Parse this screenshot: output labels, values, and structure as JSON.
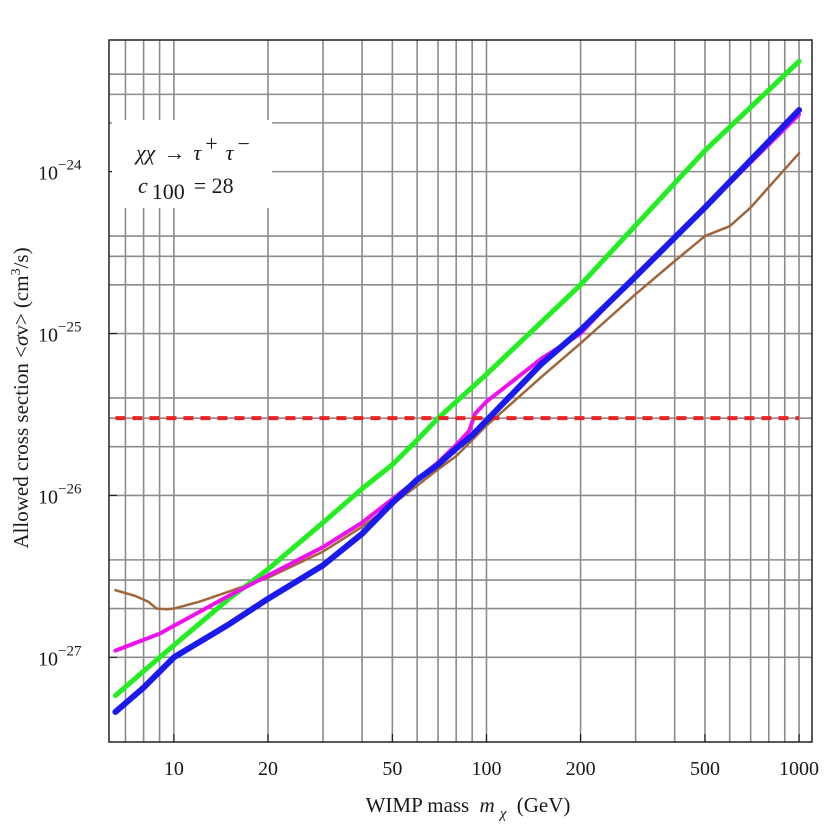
{
  "chart_data": {
    "type": "line",
    "title": "",
    "xlabel": {
      "prefix": "WIMP mass",
      "symbol": "m",
      "subscript": "χ",
      "suffix": "(GeV)"
    },
    "ylabel": {
      "prefix": "Allowed cross section <",
      "sigma": "σ",
      "v": "v",
      "suffix": "> (cm",
      "power": "3",
      "tail": "/s)"
    },
    "xscale": "log",
    "yscale": "log",
    "xlim": [
      6.2,
      1100
    ],
    "ylim": [
      3e-28,
      6.5e-24
    ],
    "x_ticks": [
      {
        "value": 10,
        "label": "10"
      },
      {
        "value": 20,
        "label": "20"
      },
      {
        "value": 50,
        "label": "50"
      },
      {
        "value": 100,
        "label": "100"
      },
      {
        "value": 200,
        "label": "200"
      },
      {
        "value": 500,
        "label": "500"
      },
      {
        "value": 1000,
        "label": "1000"
      }
    ],
    "y_ticks": [
      {
        "value": 1e-27,
        "base": "10",
        "exp": "−27"
      },
      {
        "value": 1e-26,
        "base": "10",
        "exp": "−26"
      },
      {
        "value": 1e-25,
        "base": "10",
        "exp": "−25"
      },
      {
        "value": 1e-24,
        "base": "10",
        "exp": "−24"
      }
    ],
    "grid": true,
    "x_grid": [
      7,
      8,
      9,
      10,
      20,
      30,
      40,
      50,
      60,
      70,
      80,
      90,
      100,
      200,
      300,
      400,
      500,
      600,
      700,
      800,
      900,
      1000
    ],
    "y_grid": [
      1e-27,
      2e-27,
      3e-27,
      4e-27,
      1e-26,
      2e-26,
      3e-26,
      4e-26,
      1e-25,
      2e-25,
      3e-25,
      4e-25,
      1e-24,
      2e-24,
      3e-24,
      4e-24
    ],
    "annotation": {
      "line1": {
        "a": "χχ",
        "arrow": "→",
        "b": "τ",
        "b_sup": "+",
        "c": "τ",
        "c_sup": "−"
      },
      "line2": {
        "c": "c",
        "sub": "100",
        "eq": "= 28"
      }
    },
    "series": [
      {
        "name": "green",
        "color": "#22ee22",
        "width": 5,
        "x": [
          6.5,
          9,
          15,
          20,
          30,
          40,
          50,
          60,
          70,
          100,
          200,
          500,
          1000
        ],
        "y": [
          5.8e-28,
          1e-27,
          2.3e-27,
          3.5e-27,
          6.8e-27,
          1.1e-26,
          1.55e-26,
          2.2e-26,
          3e-26,
          5.6e-26,
          2e-25,
          1.35e-24,
          4.8e-24
        ]
      },
      {
        "name": "blue",
        "color": "#1a1aee",
        "width": 6,
        "x": [
          6.5,
          8,
          10,
          15,
          20,
          30,
          40,
          50,
          60,
          70,
          80,
          90,
          100,
          150,
          200,
          300,
          500,
          1000
        ],
        "y": [
          4.6e-28,
          6.5e-28,
          1e-27,
          1.6e-27,
          2.3e-27,
          3.7e-27,
          5.8e-27,
          9e-27,
          1.25e-26,
          1.55e-26,
          1.95e-26,
          2.35e-26,
          2.9e-26,
          6.5e-26,
          1.05e-25,
          2.25e-25,
          6e-25,
          2.4e-24
        ]
      },
      {
        "name": "magenta",
        "color": "#ee11ee",
        "width": 4,
        "x": [
          6.5,
          9,
          15,
          20,
          30,
          40,
          50,
          60,
          70,
          80,
          88,
          92,
          100,
          150,
          200,
          300,
          500,
          1000
        ],
        "y": [
          1.1e-27,
          1.4e-27,
          2.4e-27,
          3.2e-27,
          4.8e-27,
          6.8e-27,
          9.5e-27,
          1.25e-26,
          1.6e-26,
          2.05e-26,
          2.5e-26,
          3.2e-26,
          3.8e-26,
          7e-26,
          1e-25,
          2.3e-25,
          6e-25,
          2.25e-24
        ]
      },
      {
        "name": "brown",
        "color": "#a0663a",
        "width": 2.5,
        "x": [
          6.5,
          7.5,
          8.3,
          8.8,
          9.5,
          10,
          12,
          15,
          20,
          30,
          40,
          50,
          60,
          70,
          80,
          100,
          150,
          200,
          300,
          400,
          500,
          600,
          700,
          1000
        ],
        "y": [
          2.6e-27,
          2.4e-27,
          2.2e-27,
          2e-27,
          1.98e-27,
          2e-27,
          2.2e-27,
          2.55e-27,
          3.1e-27,
          4.5e-27,
          6.4e-27,
          8.8e-27,
          1.15e-26,
          1.45e-26,
          1.75e-26,
          2.7e-26,
          5.4e-26,
          8.7e-26,
          1.75e-25,
          2.8e-25,
          4e-25,
          4.6e-25,
          6e-25,
          1.3e-24
        ]
      },
      {
        "name": "red-dashed",
        "color": "#ee2222",
        "width": 4,
        "dashed": true,
        "x": [
          6.5,
          1000
        ],
        "y": [
          3e-26,
          3e-26
        ]
      }
    ]
  }
}
